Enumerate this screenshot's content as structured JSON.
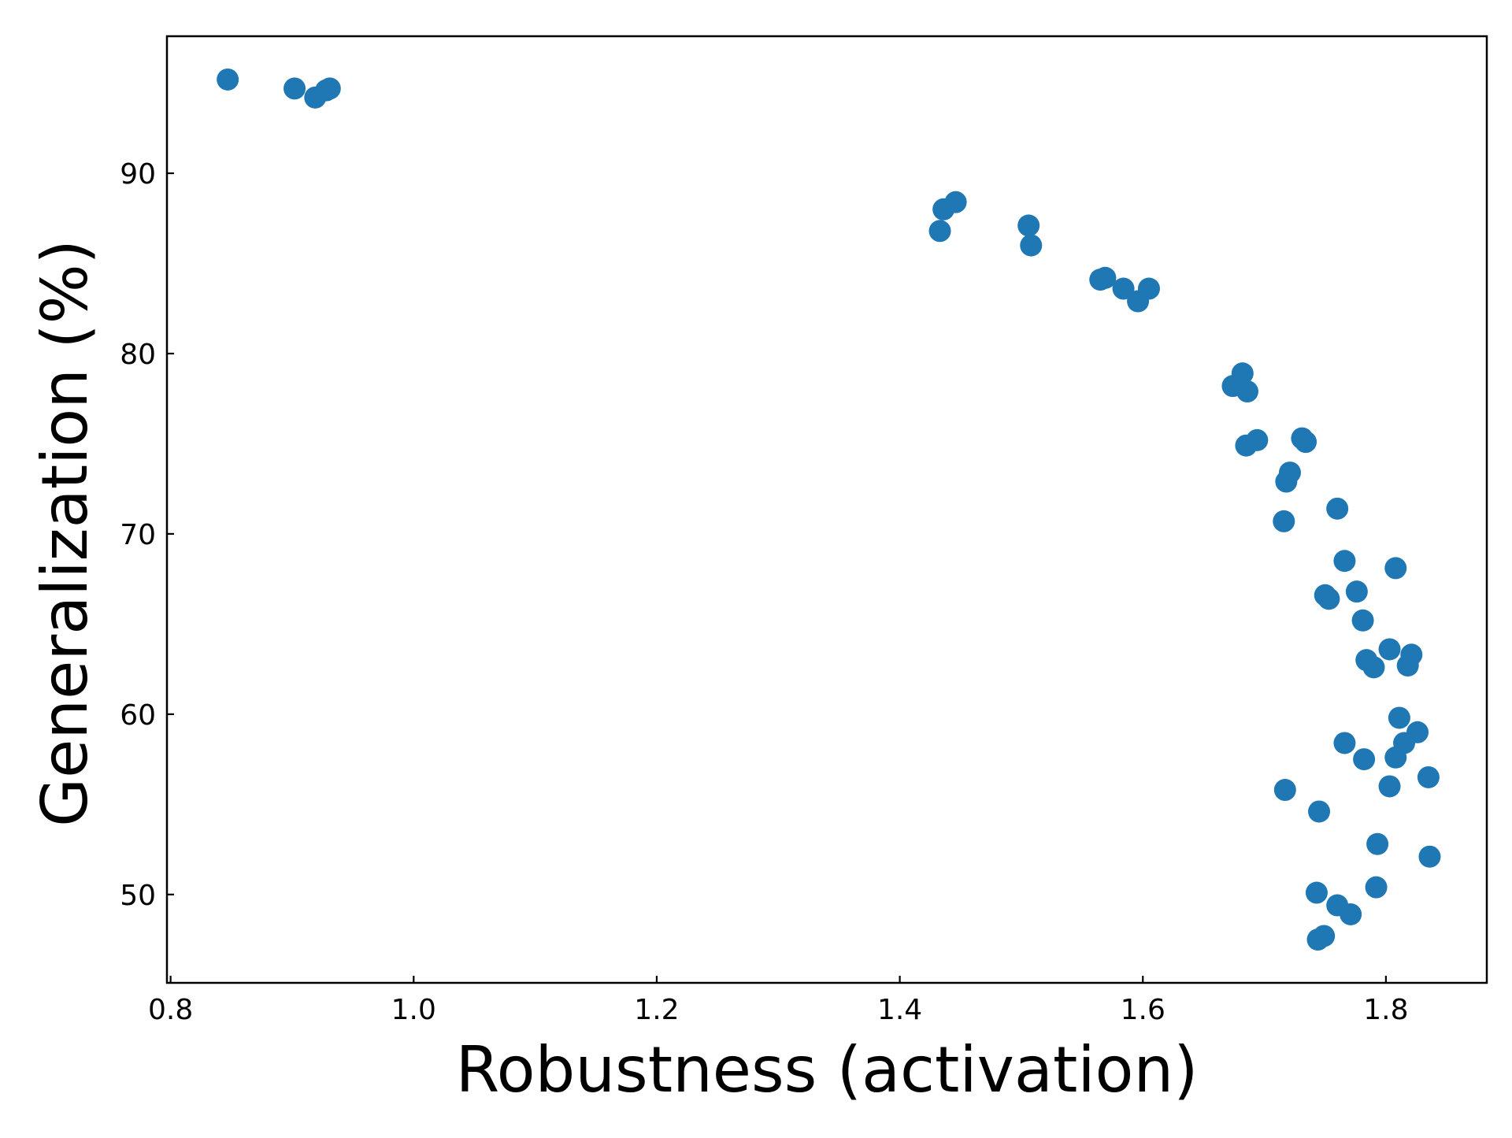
{
  "chart_data": {
    "type": "scatter",
    "title": "",
    "xlabel": "Robustness (activation)",
    "ylabel": "Generalization (%)",
    "xlim": [
      0.797,
      1.883
    ],
    "ylim": [
      45.1,
      97.6
    ],
    "xticks": [
      0.8,
      1.0,
      1.2,
      1.4,
      1.6,
      1.8
    ],
    "xtick_labels": [
      "0.8",
      "1.0",
      "1.2",
      "1.4",
      "1.6",
      "1.8"
    ],
    "yticks": [
      50,
      60,
      70,
      80,
      90
    ],
    "ytick_labels": [
      "50",
      "60",
      "70",
      "80",
      "90"
    ],
    "grid": false,
    "legend": false,
    "colors": {
      "marker": "#1f77b4",
      "axes": "#000000",
      "background": "#ffffff"
    },
    "series": [
      {
        "points": [
          [
            0.847,
            95.2
          ],
          [
            0.902,
            94.7
          ],
          [
            0.919,
            94.2
          ],
          [
            0.928,
            94.6
          ],
          [
            0.931,
            94.7
          ],
          [
            1.433,
            86.8
          ],
          [
            1.436,
            88.0
          ],
          [
            1.446,
            88.4
          ],
          [
            1.506,
            87.1
          ],
          [
            1.508,
            86.0
          ],
          [
            1.565,
            84.1
          ],
          [
            1.569,
            84.2
          ],
          [
            1.584,
            83.6
          ],
          [
            1.596,
            82.9
          ],
          [
            1.605,
            83.6
          ],
          [
            1.674,
            78.2
          ],
          [
            1.682,
            78.9
          ],
          [
            1.686,
            77.9
          ],
          [
            1.685,
            74.9
          ],
          [
            1.694,
            75.2
          ],
          [
            1.731,
            75.3
          ],
          [
            1.734,
            75.1
          ],
          [
            1.718,
            72.9
          ],
          [
            1.721,
            73.4
          ],
          [
            1.716,
            70.7
          ],
          [
            1.76,
            71.4
          ],
          [
            1.766,
            68.5
          ],
          [
            1.808,
            68.1
          ],
          [
            1.75,
            66.6
          ],
          [
            1.753,
            66.4
          ],
          [
            1.776,
            66.8
          ],
          [
            1.781,
            65.2
          ],
          [
            1.803,
            63.6
          ],
          [
            1.784,
            63.0
          ],
          [
            1.79,
            62.6
          ],
          [
            1.821,
            63.3
          ],
          [
            1.818,
            62.7
          ],
          [
            1.811,
            59.8
          ],
          [
            1.826,
            59.0
          ],
          [
            1.815,
            58.4
          ],
          [
            1.766,
            58.4
          ],
          [
            1.782,
            57.5
          ],
          [
            1.808,
            57.6
          ],
          [
            1.803,
            56.0
          ],
          [
            1.835,
            56.5
          ],
          [
            1.717,
            55.8
          ],
          [
            1.745,
            54.6
          ],
          [
            1.793,
            52.8
          ],
          [
            1.836,
            52.1
          ],
          [
            1.743,
            50.1
          ],
          [
            1.792,
            50.4
          ],
          [
            1.76,
            49.4
          ],
          [
            1.771,
            48.9
          ],
          [
            1.749,
            47.7
          ],
          [
            1.744,
            47.5
          ]
        ]
      }
    ]
  }
}
